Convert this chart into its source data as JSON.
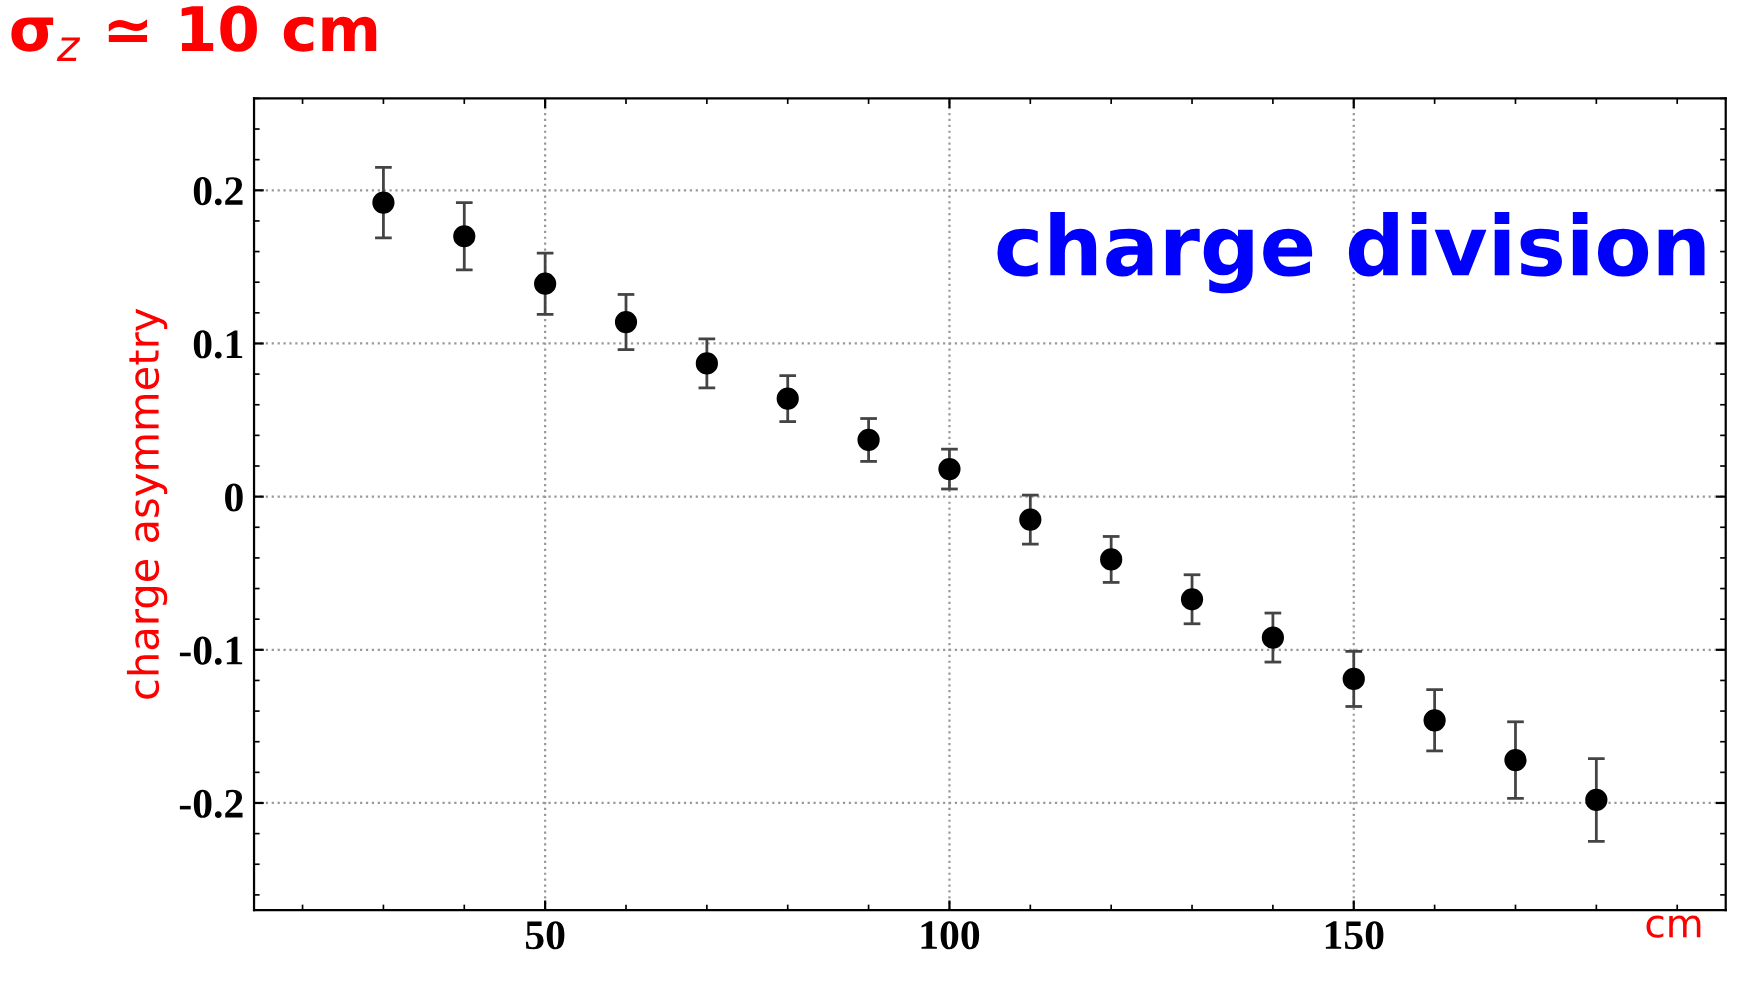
{
  "chart_data": {
    "type": "scatter",
    "ylabel": "charge asymmetry",
    "xlabel": "cm",
    "annotations": [
      "σ$_{z}$ ≃ 10 cm",
      "charge division"
    ],
    "x": [
      30,
      40,
      50,
      60,
      70,
      80,
      90,
      100,
      110,
      120,
      130,
      140,
      150,
      160,
      170,
      180
    ],
    "values": [
      0.192,
      0.17,
      0.139,
      0.114,
      0.087,
      0.064,
      0.037,
      0.018,
      -0.015,
      -0.041,
      -0.067,
      -0.092,
      -0.119,
      -0.146,
      -0.172,
      -0.198
    ],
    "errors": [
      0.023,
      0.022,
      0.02,
      0.018,
      0.016,
      0.015,
      0.014,
      0.013,
      0.016,
      0.015,
      0.016,
      0.016,
      0.018,
      0.02,
      0.025,
      0.027
    ],
    "color": "#000000",
    "marker": "circle",
    "xlim": [
      14,
      196
    ],
    "ylim": [
      -0.27,
      0.26
    ],
    "xticks": [
      50,
      100,
      150
    ],
    "yticks": [
      -0.2,
      -0.1,
      0,
      0.1,
      0.2
    ],
    "grid": true
  }
}
